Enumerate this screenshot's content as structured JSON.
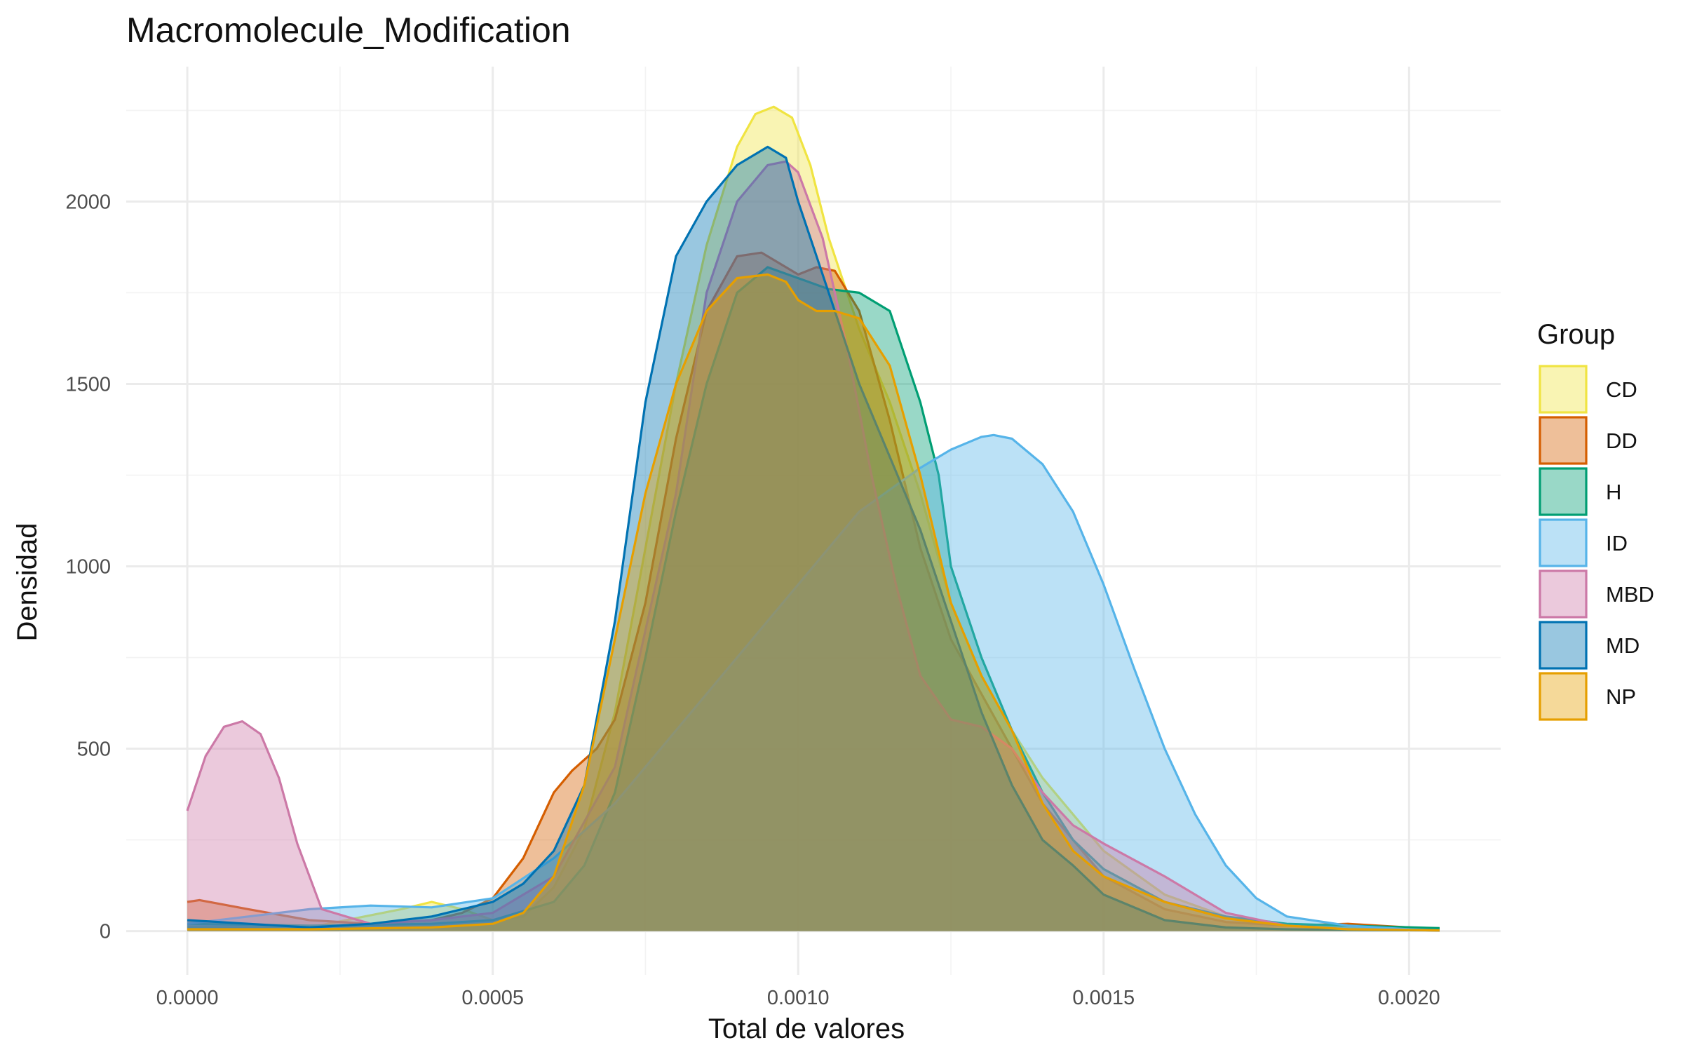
{
  "chart_data": {
    "type": "area",
    "subtype": "density",
    "title": "Macromolecule_Modification",
    "xlabel": "Total de valores",
    "ylabel": "Densidad",
    "xlim": [
      -0.0001,
      0.00215
    ],
    "ylim": [
      -120,
      2370
    ],
    "x_ticks": [
      0,
      0.0005,
      0.001,
      0.0015,
      0.002
    ],
    "x_tick_labels": [
      "0.0000",
      "0.0005",
      "0.0010",
      "0.0015",
      "0.0020"
    ],
    "y_ticks": [
      0,
      500,
      1000,
      1500,
      2000
    ],
    "y_tick_labels": [
      "0",
      "500",
      "1000",
      "1500",
      "2000"
    ],
    "grid": true,
    "legend": {
      "title": "Group",
      "position": "right"
    },
    "series": [
      {
        "name": "CD",
        "color": "#F0E442",
        "x": [
          0,
          0.0002,
          0.00035,
          0.0004,
          0.00045,
          0.0005,
          0.00055,
          0.0006,
          0.00065,
          0.0007,
          0.00075,
          0.0008,
          0.00085,
          0.0009,
          0.00093,
          0.00096,
          0.00099,
          0.00102,
          0.00105,
          0.0011,
          0.00115,
          0.0012,
          0.00125,
          0.0013,
          0.00135,
          0.0014,
          0.00145,
          0.0015,
          0.0016,
          0.0017,
          0.0018,
          0.0019,
          0.00205
        ],
        "y": [
          10,
          10,
          60,
          80,
          60,
          30,
          40,
          120,
          280,
          600,
          1050,
          1500,
          1880,
          2150,
          2240,
          2260,
          2230,
          2100,
          1900,
          1650,
          1450,
          1200,
          900,
          700,
          550,
          420,
          320,
          220,
          100,
          40,
          15,
          5,
          2
        ]
      },
      {
        "name": "DD",
        "color": "#D55E00",
        "x": [
          0,
          2e-05,
          0.0001,
          0.0002,
          0.0003,
          0.0004,
          0.00045,
          0.0005,
          0.00055,
          0.0006,
          0.00063,
          0.00067,
          0.0007,
          0.00075,
          0.0008,
          0.00085,
          0.0009,
          0.00094,
          0.00098,
          0.001,
          0.00103,
          0.00106,
          0.0011,
          0.00115,
          0.0012,
          0.00125,
          0.0013,
          0.00135,
          0.0014,
          0.00145,
          0.0015,
          0.0016,
          0.0017,
          0.0018,
          0.0019,
          0.00195,
          0.00205
        ],
        "y": [
          80,
          85,
          60,
          30,
          20,
          30,
          50,
          90,
          200,
          380,
          440,
          500,
          580,
          900,
          1350,
          1700,
          1850,
          1860,
          1820,
          1800,
          1820,
          1810,
          1700,
          1400,
          1050,
          800,
          650,
          500,
          350,
          250,
          150,
          60,
          25,
          15,
          20,
          15,
          5
        ]
      },
      {
        "name": "H",
        "color": "#009E73",
        "x": [
          0,
          0.0002,
          0.0004,
          0.0005,
          0.0006,
          0.00065,
          0.0007,
          0.00075,
          0.0008,
          0.00085,
          0.0009,
          0.00095,
          0.001,
          0.00105,
          0.0011,
          0.00115,
          0.0012,
          0.00123,
          0.00125,
          0.0013,
          0.00135,
          0.0014,
          0.00145,
          0.0015,
          0.0016,
          0.0017,
          0.0018,
          0.0019,
          0.00205
        ],
        "y": [
          20,
          15,
          20,
          30,
          80,
          180,
          380,
          750,
          1150,
          1500,
          1750,
          1820,
          1790,
          1760,
          1750,
          1700,
          1450,
          1250,
          1000,
          750,
          550,
          380,
          250,
          170,
          80,
          40,
          20,
          15,
          8
        ]
      },
      {
        "name": "ID",
        "color": "#56B4E9",
        "x": [
          0,
          0.0001,
          0.0002,
          0.0003,
          0.0004,
          0.0005,
          0.0006,
          0.0007,
          0.0008,
          0.0009,
          0.001,
          0.0011,
          0.0012,
          0.00125,
          0.0013,
          0.00132,
          0.00135,
          0.0014,
          0.00145,
          0.0015,
          0.00155,
          0.0016,
          0.00165,
          0.0017,
          0.00175,
          0.0018,
          0.0019,
          0.002,
          0.00205
        ],
        "y": [
          20,
          40,
          60,
          70,
          65,
          90,
          200,
          350,
          550,
          750,
          950,
          1150,
          1270,
          1320,
          1355,
          1360,
          1350,
          1280,
          1150,
          950,
          720,
          500,
          320,
          180,
          90,
          40,
          15,
          5,
          2
        ]
      },
      {
        "name": "MBD",
        "color": "#CC79A7",
        "x": [
          0,
          3e-05,
          6e-05,
          9e-05,
          0.00012,
          0.00015,
          0.00018,
          0.00022,
          0.0003,
          0.0004,
          0.0005,
          0.0006,
          0.0007,
          0.0008,
          0.00085,
          0.0009,
          0.00095,
          0.00098,
          0.001,
          0.00104,
          0.00108,
          0.00112,
          0.00116,
          0.0012,
          0.00125,
          0.0013,
          0.00135,
          0.0014,
          0.00145,
          0.0015,
          0.0016,
          0.0017,
          0.0018,
          0.0019,
          0.00205
        ],
        "y": [
          330,
          480,
          560,
          575,
          540,
          420,
          240,
          60,
          20,
          30,
          50,
          150,
          450,
          1200,
          1750,
          2000,
          2100,
          2110,
          2080,
          1900,
          1600,
          1250,
          950,
          700,
          580,
          560,
          500,
          380,
          290,
          240,
          150,
          50,
          15,
          5,
          2
        ]
      },
      {
        "name": "MD",
        "color": "#0072B2",
        "x": [
          0,
          0.0001,
          0.0002,
          0.0003,
          0.0004,
          0.0005,
          0.00055,
          0.0006,
          0.00065,
          0.0007,
          0.00075,
          0.0008,
          0.00085,
          0.0009,
          0.00095,
          0.00098,
          0.001,
          0.00103,
          0.00106,
          0.0011,
          0.00115,
          0.0012,
          0.00125,
          0.0013,
          0.00135,
          0.0014,
          0.00145,
          0.0015,
          0.0016,
          0.0017,
          0.0018,
          0.0019,
          0.00205
        ],
        "y": [
          30,
          20,
          10,
          20,
          40,
          80,
          130,
          220,
          400,
          850,
          1450,
          1850,
          2000,
          2100,
          2150,
          2120,
          2000,
          1850,
          1700,
          1500,
          1300,
          1100,
          850,
          600,
          400,
          250,
          180,
          100,
          30,
          10,
          5,
          3,
          2
        ]
      },
      {
        "name": "NP",
        "color": "#E69F00",
        "x": [
          0,
          0.0002,
          0.0004,
          0.0005,
          0.00055,
          0.0006,
          0.00065,
          0.0007,
          0.00075,
          0.0008,
          0.00085,
          0.0009,
          0.00095,
          0.00098,
          0.001,
          0.00103,
          0.00106,
          0.0011,
          0.00115,
          0.0012,
          0.00125,
          0.0013,
          0.00135,
          0.0014,
          0.00145,
          0.0015,
          0.0016,
          0.0017,
          0.0018,
          0.0019,
          0.00205
        ],
        "y": [
          5,
          5,
          10,
          20,
          50,
          150,
          400,
          800,
          1200,
          1500,
          1700,
          1790,
          1800,
          1780,
          1730,
          1700,
          1700,
          1680,
          1550,
          1250,
          900,
          700,
          550,
          350,
          220,
          150,
          80,
          35,
          15,
          5,
          2
        ]
      }
    ]
  }
}
